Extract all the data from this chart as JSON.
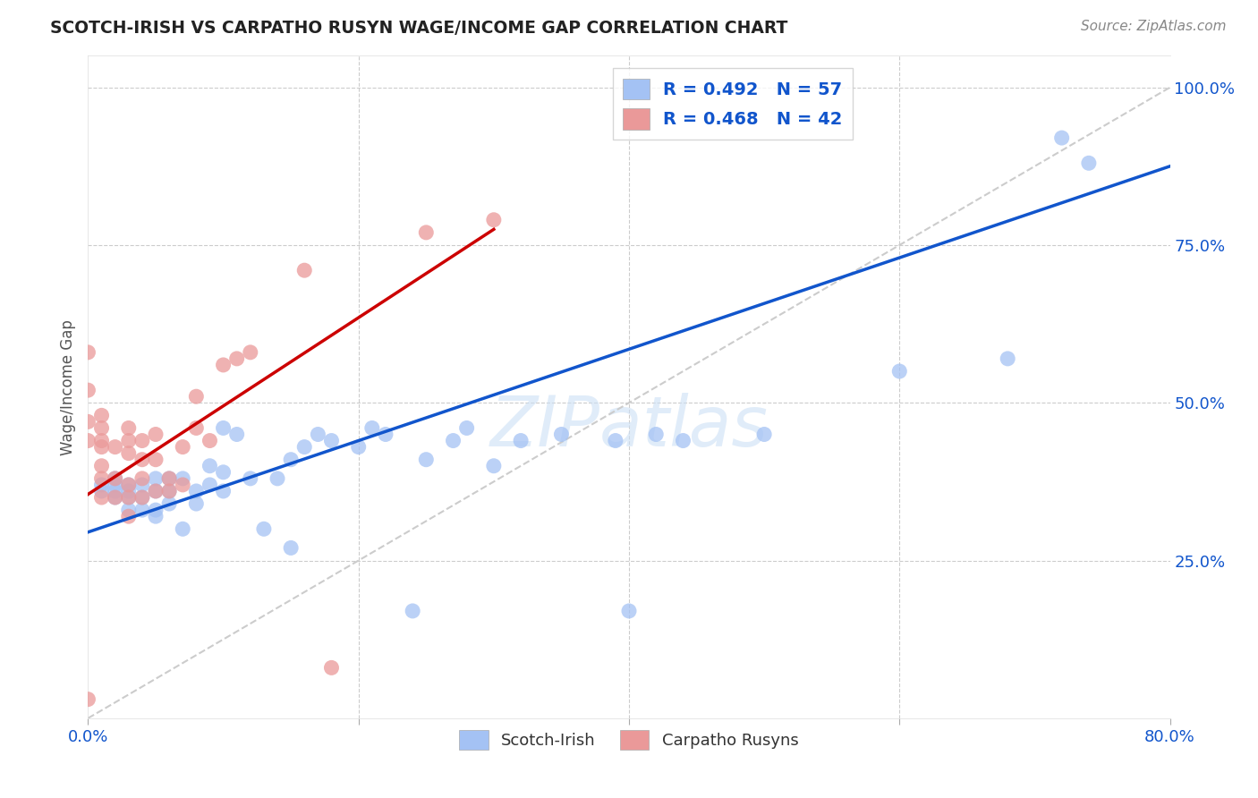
{
  "title": "SCOTCH-IRISH VS CARPATHO RUSYN WAGE/INCOME GAP CORRELATION CHART",
  "source": "Source: ZipAtlas.com",
  "ylabel": "Wage/Income Gap",
  "xmin": 0.0,
  "xmax": 0.8,
  "ymin": 0.0,
  "ymax": 1.05,
  "xticks": [
    0.0,
    0.2,
    0.4,
    0.6,
    0.8
  ],
  "xtick_labels": [
    "0.0%",
    "",
    "",
    "",
    "80.0%"
  ],
  "ytick_positions": [
    0.25,
    0.5,
    0.75,
    1.0
  ],
  "ytick_labels": [
    "25.0%",
    "50.0%",
    "75.0%",
    "100.0%"
  ],
  "blue_R": "0.492",
  "blue_N": "57",
  "pink_R": "0.468",
  "pink_N": "42",
  "blue_color": "#a4c2f4",
  "pink_color": "#ea9999",
  "blue_line_color": "#1155cc",
  "pink_line_color": "#cc0000",
  "dash_line_color": "#cccccc",
  "watermark": "ZIPatlas",
  "blue_line_x0": 0.0,
  "blue_line_y0": 0.295,
  "blue_line_x1": 0.8,
  "blue_line_y1": 0.875,
  "pink_line_x0": 0.0,
  "pink_line_x1": 0.3,
  "pink_line_y0": 0.355,
  "pink_line_y1": 0.775,
  "blue_scatter_x": [
    0.01,
    0.01,
    0.02,
    0.02,
    0.02,
    0.02,
    0.03,
    0.03,
    0.03,
    0.03,
    0.04,
    0.04,
    0.04,
    0.05,
    0.05,
    0.05,
    0.05,
    0.06,
    0.06,
    0.06,
    0.07,
    0.07,
    0.08,
    0.08,
    0.09,
    0.09,
    0.1,
    0.1,
    0.1,
    0.11,
    0.12,
    0.13,
    0.14,
    0.15,
    0.15,
    0.16,
    0.17,
    0.18,
    0.2,
    0.21,
    0.22,
    0.24,
    0.25,
    0.27,
    0.28,
    0.3,
    0.32,
    0.35,
    0.39,
    0.4,
    0.42,
    0.44,
    0.5,
    0.6,
    0.68,
    0.72,
    0.74
  ],
  "blue_scatter_y": [
    0.36,
    0.37,
    0.35,
    0.36,
    0.37,
    0.38,
    0.33,
    0.35,
    0.36,
    0.37,
    0.33,
    0.35,
    0.37,
    0.32,
    0.33,
    0.36,
    0.38,
    0.34,
    0.36,
    0.38,
    0.3,
    0.38,
    0.34,
    0.36,
    0.37,
    0.4,
    0.36,
    0.39,
    0.46,
    0.45,
    0.38,
    0.3,
    0.38,
    0.27,
    0.41,
    0.43,
    0.45,
    0.44,
    0.43,
    0.46,
    0.45,
    0.17,
    0.41,
    0.44,
    0.46,
    0.4,
    0.44,
    0.45,
    0.44,
    0.17,
    0.45,
    0.44,
    0.45,
    0.55,
    0.57,
    0.92,
    0.88
  ],
  "pink_scatter_x": [
    0.0,
    0.0,
    0.0,
    0.0,
    0.0,
    0.01,
    0.01,
    0.01,
    0.01,
    0.01,
    0.01,
    0.01,
    0.02,
    0.02,
    0.02,
    0.03,
    0.03,
    0.03,
    0.03,
    0.03,
    0.03,
    0.04,
    0.04,
    0.04,
    0.04,
    0.05,
    0.05,
    0.05,
    0.06,
    0.06,
    0.07,
    0.07,
    0.08,
    0.08,
    0.09,
    0.1,
    0.11,
    0.12,
    0.16,
    0.18,
    0.25,
    0.3
  ],
  "pink_scatter_y": [
    0.58,
    0.52,
    0.47,
    0.44,
    0.03,
    0.35,
    0.38,
    0.4,
    0.43,
    0.44,
    0.46,
    0.48,
    0.35,
    0.38,
    0.43,
    0.32,
    0.35,
    0.37,
    0.42,
    0.44,
    0.46,
    0.35,
    0.38,
    0.41,
    0.44,
    0.36,
    0.41,
    0.45,
    0.36,
    0.38,
    0.37,
    0.43,
    0.46,
    0.51,
    0.44,
    0.56,
    0.57,
    0.58,
    0.71,
    0.08,
    0.77,
    0.79
  ]
}
